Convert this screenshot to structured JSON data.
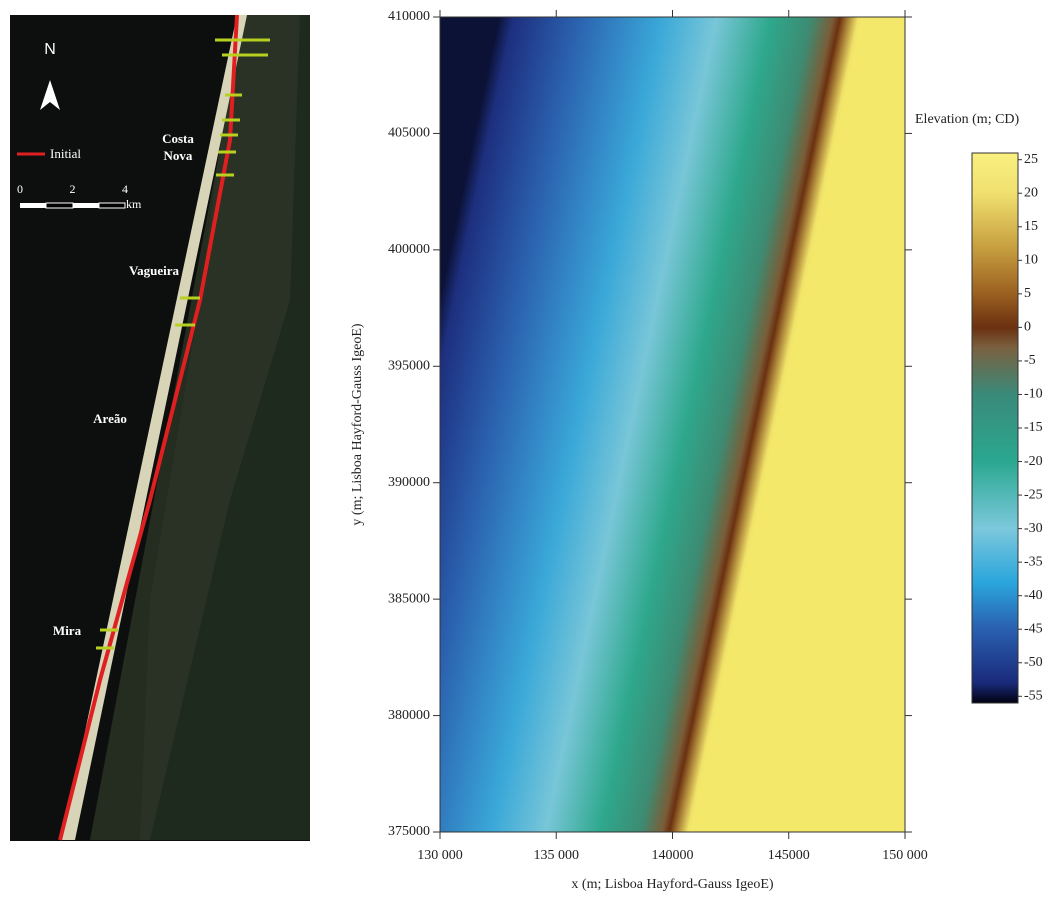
{
  "map": {
    "north": "N",
    "legend": "Initial",
    "scale_ticks": [
      "0",
      "2",
      "4"
    ],
    "scale_unit": "km",
    "places": [
      [
        "Costa",
        "Nova"
      ],
      [
        "Vagueira"
      ],
      [
        "Areão"
      ],
      [
        "Mira"
      ]
    ]
  },
  "chart_data": {
    "type": "raster",
    "xlabel": "x (m; Lisboa Hayford-Gauss IgeoE)",
    "ylabel": "y (m; Lisboa Hayford-Gauss IgeoE)",
    "xlim": [
      130000,
      150000
    ],
    "xticks": [
      {
        "value": 130000,
        "label": "130 000"
      },
      {
        "value": 135000,
        "label": "135 000"
      },
      140000,
      145000,
      {
        "value": 150000,
        "label": "150 000"
      }
    ],
    "ylim": [
      375000,
      410000
    ],
    "yticks": [
      375000,
      380000,
      385000,
      390000,
      395000,
      400000,
      405000,
      410000
    ],
    "colorbar": {
      "title": "Elevation (m; CD)",
      "lim": [
        -56,
        26
      ],
      "ticks": [
        25,
        20,
        15,
        10,
        5,
        0,
        -5,
        -10,
        -15,
        -20,
        -25,
        -30,
        -35,
        -40,
        -45,
        -50,
        -55
      ],
      "colormap": [
        {
          "value": -56,
          "color": "#000010"
        },
        {
          "value": -53,
          "color": "#1a2a7a"
        },
        {
          "value": -45,
          "color": "#2a5fb0"
        },
        {
          "value": -38,
          "color": "#2aa6dc"
        },
        {
          "value": -30,
          "color": "#7cc8dc"
        },
        {
          "value": -20,
          "color": "#2aa890"
        },
        {
          "value": -10,
          "color": "#3a8a7a"
        },
        {
          "value": -3,
          "color": "#7a6040"
        },
        {
          "value": 0,
          "color": "#6b3010"
        },
        {
          "value": 5,
          "color": "#9a6020"
        },
        {
          "value": 12,
          "color": "#c8a040"
        },
        {
          "value": 20,
          "color": "#f0e070"
        },
        {
          "value": 26,
          "color": "#f8f080"
        }
      ]
    }
  }
}
